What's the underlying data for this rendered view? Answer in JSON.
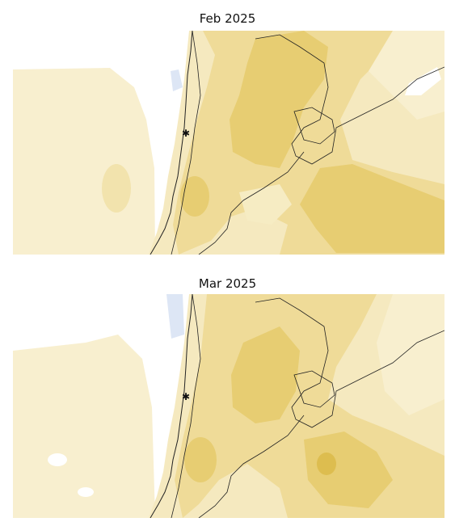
{
  "panels": [
    {
      "title": "Feb 2025",
      "marker": "✱"
    },
    {
      "title": "Mar 2025",
      "marker": "✱"
    }
  ],
  "colors": {
    "anomaly_weak": "#faf3d6",
    "anomaly_light": "#f6ecc3",
    "anomaly_moderate": "#efdb98",
    "anomaly_strong": "#e7cd72",
    "anomaly_peak": "#ddbd4f",
    "wet_anomaly": "#dde6f5",
    "coast_border": "#222222"
  }
}
